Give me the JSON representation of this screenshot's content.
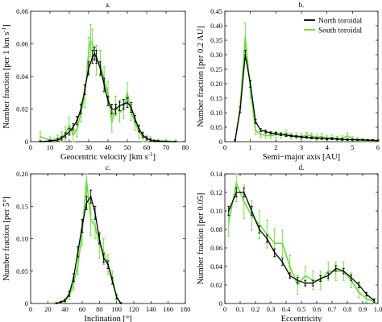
{
  "colors": {
    "north": "#000000",
    "south": "#66dd33"
  },
  "legend": {
    "north": "North toroidal",
    "south": "South toroidal"
  },
  "chart_data": [
    {
      "type": "line",
      "title": "a.",
      "xlabel": "Geocentric velocity [km s",
      "xlabel_sup": "-1",
      "xlabel_end": "]",
      "ylabel": "Number fraction [per 1 km s",
      "ylabel_sup": "-1",
      "ylabel_end": "]",
      "xlim": [
        0,
        80
      ],
      "ylim": [
        0,
        0.08
      ],
      "xticks": [
        0,
        10,
        20,
        30,
        40,
        50,
        60,
        70,
        80
      ],
      "xtick_labels": [
        "0",
        "10",
        "20",
        "30",
        "40",
        "50",
        "60",
        "70",
        "80"
      ],
      "yticks": [
        0,
        0.02,
        0.04,
        0.06,
        0.08
      ],
      "ytick_labels": [
        "0",
        "0.02",
        "0.04",
        "0.06",
        "0.08"
      ],
      "series": [
        {
          "key": "north",
          "x": [
            5,
            10,
            14,
            16,
            18,
            20,
            22,
            24,
            26,
            28,
            30,
            32,
            33,
            34,
            36,
            38,
            40,
            42,
            44,
            46,
            48,
            50,
            52,
            54,
            56,
            58,
            60,
            62,
            64,
            66,
            70,
            75
          ],
          "y": [
            0,
            0.0005,
            0.001,
            0.002,
            0.004,
            0.006,
            0.009,
            0.013,
            0.02,
            0.032,
            0.045,
            0.052,
            0.054,
            0.052,
            0.045,
            0.035,
            0.025,
            0.02,
            0.02,
            0.022,
            0.023,
            0.024,
            0.021,
            0.014,
            0.008,
            0.004,
            0.002,
            0.001,
            0.0005,
            0.0003,
            0.0001,
            0
          ],
          "err": [
            0.0005,
            0.0005,
            0.0008,
            0.001,
            0.0015,
            0.002,
            0.002,
            0.0025,
            0.003,
            0.003,
            0.004,
            0.004,
            0.004,
            0.004,
            0.004,
            0.004,
            0.003,
            0.003,
            0.003,
            0.003,
            0.003,
            0.003,
            0.003,
            0.002,
            0.002,
            0.0015,
            0.001,
            0.0008,
            0.0005,
            0.0005,
            0.0003,
            0.0003
          ]
        },
        {
          "key": "south",
          "x": [
            5,
            10,
            14,
            16,
            18,
            20,
            22,
            24,
            26,
            28,
            30,
            31,
            32,
            34,
            36,
            38,
            40,
            42,
            44,
            46,
            48,
            50,
            52,
            54,
            56,
            58,
            60,
            62,
            66,
            70,
            75
          ],
          "y": [
            0.003,
            0.001,
            0.002,
            0.003,
            0.005,
            0.01,
            0.004,
            0.008,
            0.018,
            0.028,
            0.055,
            0.062,
            0.06,
            0.05,
            0.048,
            0.038,
            0.03,
            0.012,
            0.022,
            0.018,
            0.02,
            0.03,
            0.018,
            0.012,
            0.006,
            0.003,
            0.002,
            0.001,
            0.0005,
            0.0005,
            0
          ],
          "err": [
            0.003,
            0.002,
            0.002,
            0.003,
            0.004,
            0.005,
            0.004,
            0.005,
            0.006,
            0.007,
            0.009,
            0.01,
            0.009,
            0.009,
            0.008,
            0.008,
            0.007,
            0.006,
            0.006,
            0.006,
            0.006,
            0.006,
            0.005,
            0.005,
            0.004,
            0.003,
            0.002,
            0.002,
            0.001,
            0.001,
            0.001
          ]
        }
      ]
    },
    {
      "type": "line",
      "title": "b.",
      "xlabel": "Semi−major axis [AU]",
      "ylabel": "Number fraction [per 0.2 AU]",
      "xlim": [
        0,
        6
      ],
      "ylim": [
        0,
        0.45
      ],
      "xticks": [
        0,
        1,
        2,
        3,
        4,
        5,
        6
      ],
      "xtick_labels": [
        "0",
        "1",
        "2",
        "3",
        "4",
        "5",
        "6"
      ],
      "yticks": [
        0,
        0.05,
        0.1,
        0.15,
        0.2,
        0.25,
        0.3,
        0.35,
        0.4,
        0.45
      ],
      "ytick_labels": [
        "0",
        "0.05",
        "0.10",
        "0.15",
        "0.20",
        "0.25",
        "0.30",
        "0.35",
        "0.40",
        "0.45"
      ],
      "legend_position": "top-right",
      "series": [
        {
          "key": "north",
          "x": [
            0.4,
            0.6,
            0.8,
            1.0,
            1.2,
            1.4,
            1.6,
            1.8,
            2.0,
            2.2,
            2.4,
            2.6,
            2.8,
            3.0,
            3.2,
            3.4,
            3.6,
            3.8,
            4.0,
            4.2,
            4.4,
            4.6,
            4.8,
            5.0,
            5.2,
            5.4,
            5.6,
            5.8,
            6.0
          ],
          "y": [
            0.003,
            0.11,
            0.3,
            0.2,
            0.07,
            0.04,
            0.035,
            0.03,
            0.028,
            0.025,
            0.022,
            0.02,
            0.018,
            0.016,
            0.015,
            0.013,
            0.012,
            0.011,
            0.01,
            0.01,
            0.009,
            0.008,
            0.007,
            0.007,
            0.006,
            0.006,
            0.005,
            0.005,
            0.004
          ],
          "err": [
            0.003,
            0.01,
            0.015,
            0.012,
            0.007,
            0.005,
            0.005,
            0.004,
            0.004,
            0.004,
            0.004,
            0.003,
            0.003,
            0.003,
            0.003,
            0.003,
            0.003,
            0.003,
            0.003,
            0.003,
            0.003,
            0.003,
            0.003,
            0.002,
            0.002,
            0.002,
            0.002,
            0.002,
            0.002
          ]
        },
        {
          "key": "south",
          "x": [
            0.4,
            0.6,
            0.8,
            1.0,
            1.2,
            1.4,
            1.6,
            1.8,
            2.0,
            2.2,
            2.4,
            2.6,
            2.8,
            3.0,
            3.2,
            3.4,
            3.6,
            3.8,
            4.0,
            4.2,
            4.4,
            4.6,
            4.8,
            5.0,
            5.2,
            5.4,
            5.6,
            5.8,
            6.0
          ],
          "y": [
            0.003,
            0.12,
            0.36,
            0.18,
            0.04,
            0.025,
            0.022,
            0.02,
            0.025,
            0.022,
            0.03,
            0.02,
            0.02,
            0.018,
            0.022,
            0.02,
            0.015,
            0.018,
            0.012,
            0.015,
            0.01,
            0.012,
            0.02,
            0.01,
            0.008,
            0.006,
            0.005,
            0.004,
            0.003
          ],
          "err": [
            0.003,
            0.02,
            0.05,
            0.03,
            0.015,
            0.01,
            0.01,
            0.01,
            0.01,
            0.01,
            0.012,
            0.01,
            0.01,
            0.01,
            0.01,
            0.01,
            0.01,
            0.01,
            0.008,
            0.008,
            0.008,
            0.008,
            0.01,
            0.007,
            0.006,
            0.005,
            0.005,
            0.004,
            0.003
          ]
        }
      ]
    },
    {
      "type": "line",
      "title": "c.",
      "xlabel": "Inclination [°]",
      "ylabel": "Number fraction [per 5°]",
      "xlim": [
        0,
        180
      ],
      "ylim": [
        0,
        0.2
      ],
      "xticks": [
        0,
        20,
        40,
        60,
        80,
        100,
        120,
        140,
        160,
        180
      ],
      "xtick_labels": [
        "0",
        "20",
        "40",
        "60",
        "80",
        "100",
        "120",
        "140",
        "160",
        "180"
      ],
      "yticks": [
        0,
        0.05,
        0.1,
        0.15,
        0.2
      ],
      "ytick_labels": [
        "0",
        "0.05",
        "0.10",
        "0.15",
        "0.20"
      ],
      "series": [
        {
          "key": "north",
          "x": [
            30,
            35,
            40,
            45,
            50,
            55,
            60,
            65,
            70,
            75,
            80,
            85,
            90,
            95,
            100,
            105
          ],
          "y": [
            0,
            0.002,
            0.005,
            0.015,
            0.04,
            0.08,
            0.12,
            0.155,
            0.165,
            0.14,
            0.1,
            0.07,
            0.06,
            0.035,
            0.01,
            0
          ],
          "err": [
            0.001,
            0.001,
            0.002,
            0.004,
            0.006,
            0.008,
            0.01,
            0.01,
            0.01,
            0.01,
            0.008,
            0.007,
            0.006,
            0.005,
            0.003,
            0.001
          ]
        },
        {
          "key": "south",
          "x": [
            30,
            35,
            40,
            45,
            50,
            55,
            60,
            65,
            70,
            75,
            80,
            85,
            90,
            95,
            100,
            105
          ],
          "y": [
            0,
            0.002,
            0.004,
            0.012,
            0.03,
            0.06,
            0.11,
            0.19,
            0.13,
            0.12,
            0.09,
            0.08,
            0.06,
            0.04,
            0.01,
            0
          ],
          "err": [
            0.002,
            0.002,
            0.003,
            0.006,
            0.01,
            0.015,
            0.02,
            0.03,
            0.025,
            0.02,
            0.02,
            0.02,
            0.015,
            0.01,
            0.005,
            0.002
          ]
        }
      ]
    },
    {
      "type": "line",
      "title": "d.",
      "xlabel": "Eccentricity",
      "ylabel": "Number fraction [per 0.05]",
      "xlim": [
        0,
        1
      ],
      "ylim": [
        0,
        0.14
      ],
      "xticks": [
        0,
        0.1,
        0.2,
        0.3,
        0.4,
        0.5,
        0.6,
        0.7,
        0.8,
        0.9,
        1.0
      ],
      "xtick_labels": [
        "0",
        "0.1",
        "0.2",
        "0.3",
        "0.4",
        "0.5",
        "0.6",
        "0.7",
        "0.8",
        "0.9",
        "1.0"
      ],
      "yticks": [
        0,
        0.02,
        0.04,
        0.06,
        0.08,
        0.1,
        0.12,
        0.14
      ],
      "ytick_labels": [
        "0",
        "0.02",
        "0.04",
        "0.06",
        "0.08",
        "0.10",
        "0.12",
        "0.14"
      ],
      "series": [
        {
          "key": "north",
          "x": [
            0.025,
            0.075,
            0.125,
            0.175,
            0.225,
            0.275,
            0.325,
            0.375,
            0.425,
            0.475,
            0.525,
            0.575,
            0.625,
            0.675,
            0.725,
            0.775,
            0.825,
            0.875,
            0.925,
            0.975
          ],
          "y": [
            0.1,
            0.12,
            0.12,
            0.1,
            0.08,
            0.07,
            0.055,
            0.045,
            0.03,
            0.025,
            0.022,
            0.022,
            0.027,
            0.03,
            0.038,
            0.035,
            0.028,
            0.02,
            0.01,
            0.003
          ],
          "err": [
            0.005,
            0.005,
            0.005,
            0.005,
            0.004,
            0.004,
            0.004,
            0.004,
            0.003,
            0.003,
            0.003,
            0.003,
            0.003,
            0.003,
            0.003,
            0.003,
            0.003,
            0.003,
            0.002,
            0.002
          ]
        },
        {
          "key": "south",
          "x": [
            0.025,
            0.075,
            0.125,
            0.175,
            0.225,
            0.275,
            0.325,
            0.375,
            0.425,
            0.475,
            0.525,
            0.575,
            0.625,
            0.675,
            0.725,
            0.775,
            0.825,
            0.875,
            0.925,
            0.975
          ],
          "y": [
            0.088,
            0.13,
            0.11,
            0.095,
            0.085,
            0.075,
            0.065,
            0.065,
            0.04,
            0.02,
            0.03,
            0.025,
            0.025,
            0.035,
            0.035,
            0.035,
            0.025,
            0.012,
            0.005,
            0.002
          ],
          "err": [
            0.015,
            0.02,
            0.018,
            0.016,
            0.015,
            0.015,
            0.015,
            0.014,
            0.012,
            0.01,
            0.01,
            0.01,
            0.01,
            0.01,
            0.01,
            0.01,
            0.008,
            0.006,
            0.004,
            0.002
          ]
        }
      ]
    }
  ]
}
